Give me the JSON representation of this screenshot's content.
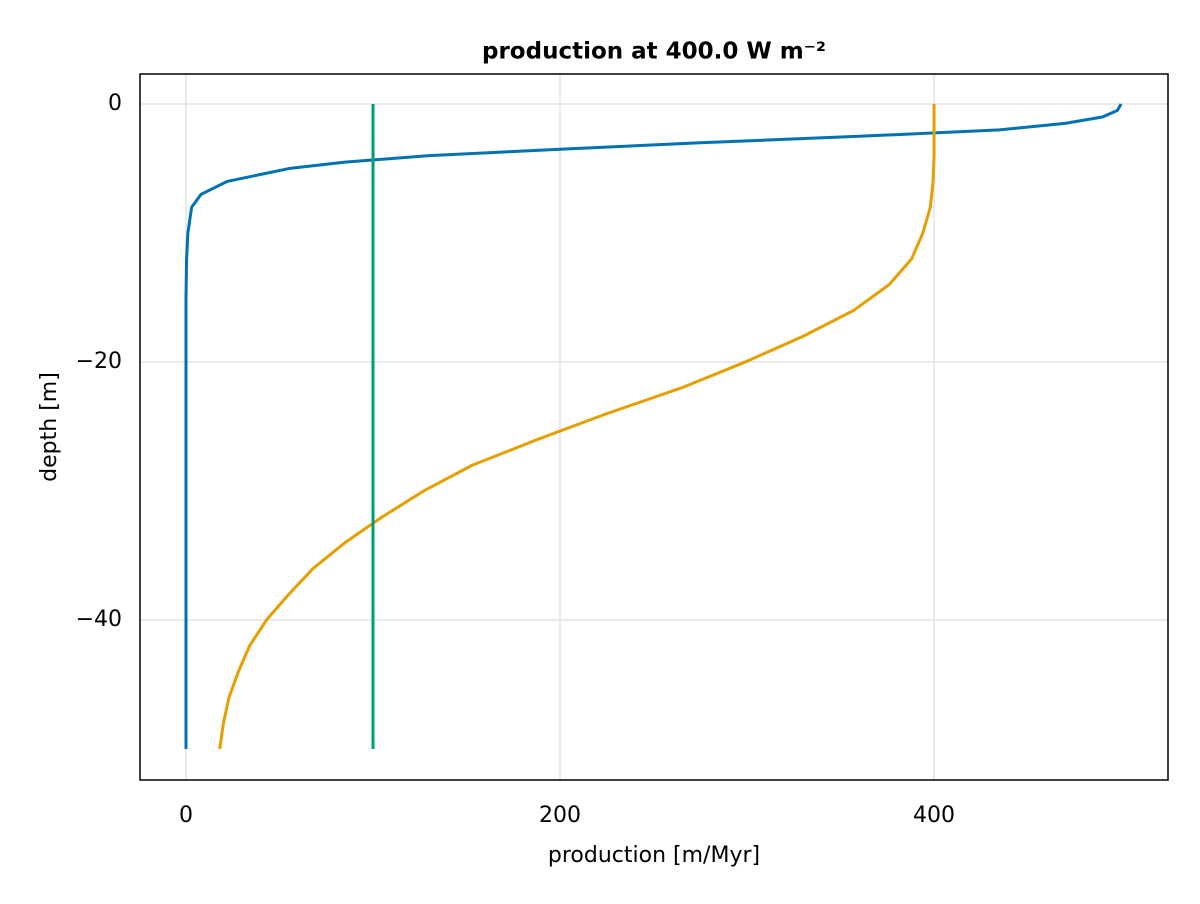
{
  "chart_data": {
    "type": "line",
    "title": "production at 400.0 W m⁻²",
    "x_label": "production [m/Myr]",
    "y_label": "depth [m]",
    "xlim": [
      -24.6,
      525.1
    ],
    "ylim": [
      -52.4,
      2.33
    ],
    "xticks": [
      0,
      200,
      400
    ],
    "yticks": [
      {
        "value": -40,
        "label": "−40"
      },
      {
        "value": -20,
        "label": "−20"
      },
      0
    ],
    "grid": true,
    "series": [
      {
        "color": "#0072b2",
        "x": [
          500,
          498,
          490,
          470,
          435,
          360,
          275,
          200,
          130,
          85,
          55,
          22,
          8,
          3,
          1,
          0.3,
          0,
          0,
          0,
          0,
          0
        ],
        "values": [
          0,
          -0.5,
          -1,
          -1.5,
          -2,
          -2.5,
          -3,
          -3.5,
          -4,
          -4.5,
          -5,
          -6,
          -7,
          -8,
          -10,
          -12,
          -15,
          -20,
          -30,
          -40,
          -50
        ]
      },
      {
        "color": "#e69f00",
        "x": [
          400,
          400,
          400,
          399.5,
          398,
          394,
          388,
          376,
          357,
          330,
          299,
          265,
          225,
          188,
          153,
          127,
          105,
          85,
          68,
          55,
          43,
          34,
          28,
          23,
          20,
          18
        ],
        "values": [
          0,
          -2,
          -4,
          -6,
          -8,
          -10,
          -12,
          -14,
          -16,
          -18,
          -20,
          -22,
          -24,
          -26,
          -28,
          -30,
          -32,
          -34,
          -36,
          -38,
          -40,
          -42,
          -44,
          -46,
          -48,
          -50
        ]
      },
      {
        "color": "#009e73",
        "x": [
          100,
          100
        ],
        "values": [
          0,
          -50
        ]
      }
    ]
  }
}
